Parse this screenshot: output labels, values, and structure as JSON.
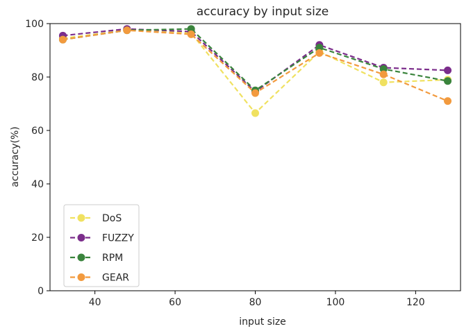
{
  "chart_data": {
    "type": "line",
    "title": "accuracy by input size",
    "xlabel": "input size",
    "ylabel": "accuracy(%)",
    "x": [
      32,
      48,
      64,
      80,
      96,
      112,
      128
    ],
    "xlim": [
      28.8,
      131.2
    ],
    "ylim": [
      0,
      100
    ],
    "xticks": [
      40,
      60,
      80,
      100,
      120
    ],
    "yticks": [
      0,
      20,
      40,
      60,
      80,
      100
    ],
    "grid": false,
    "legend_position": "lower-left",
    "line_style": "dashed",
    "marker": "circle",
    "series": [
      {
        "name": "DoS",
        "color": "#f0e160",
        "values": [
          94.5,
          97.5,
          96.5,
          66.5,
          89.5,
          78.0,
          79.0
        ]
      },
      {
        "name": "FUZZY",
        "color": "#7b2d8b",
        "values": [
          95.5,
          98.0,
          97.0,
          74.5,
          92.0,
          83.5,
          82.5
        ]
      },
      {
        "name": "RPM",
        "color": "#3a843c",
        "values": [
          94.0,
          97.5,
          98.0,
          75.0,
          91.0,
          83.0,
          78.5
        ]
      },
      {
        "name": "GEAR",
        "color": "#f29a3e",
        "values": [
          94.0,
          97.5,
          96.0,
          74.0,
          89.0,
          81.0,
          71.0
        ]
      }
    ]
  }
}
